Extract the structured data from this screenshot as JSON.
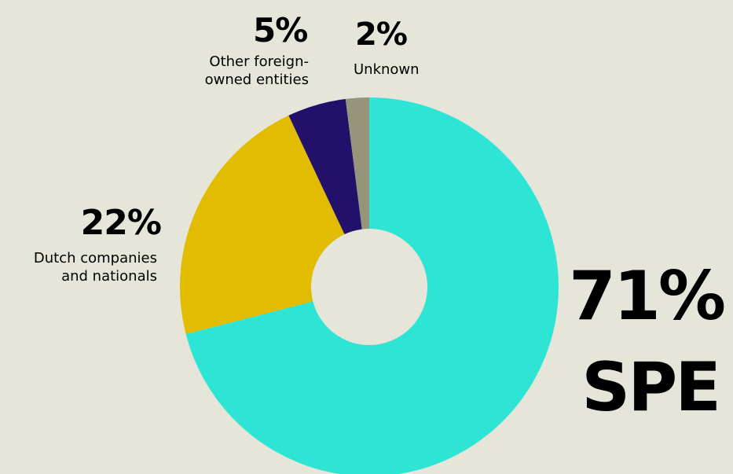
{
  "chart_data": {
    "type": "pie",
    "donut": true,
    "title": "",
    "series": [
      {
        "slices": [
          {
            "key": "spe",
            "value": 71,
            "value_label": "71%",
            "label": "SPE",
            "color": "#2ee5d5"
          },
          {
            "key": "dutch",
            "value": 22,
            "value_label": "22%",
            "label": "Dutch companies\nand nationals",
            "color": "#e2bc00"
          },
          {
            "key": "other",
            "value": 5,
            "value_label": "5%",
            "label": "Other foreign-\nowned entities",
            "color": "#22106a"
          },
          {
            "key": "unknown",
            "value": 2,
            "value_label": "2%",
            "label": "Unknown",
            "color": "#96947a"
          }
        ]
      }
    ],
    "legend": "none"
  },
  "colors": {
    "background": "#e6e5da",
    "text": "#000000"
  }
}
